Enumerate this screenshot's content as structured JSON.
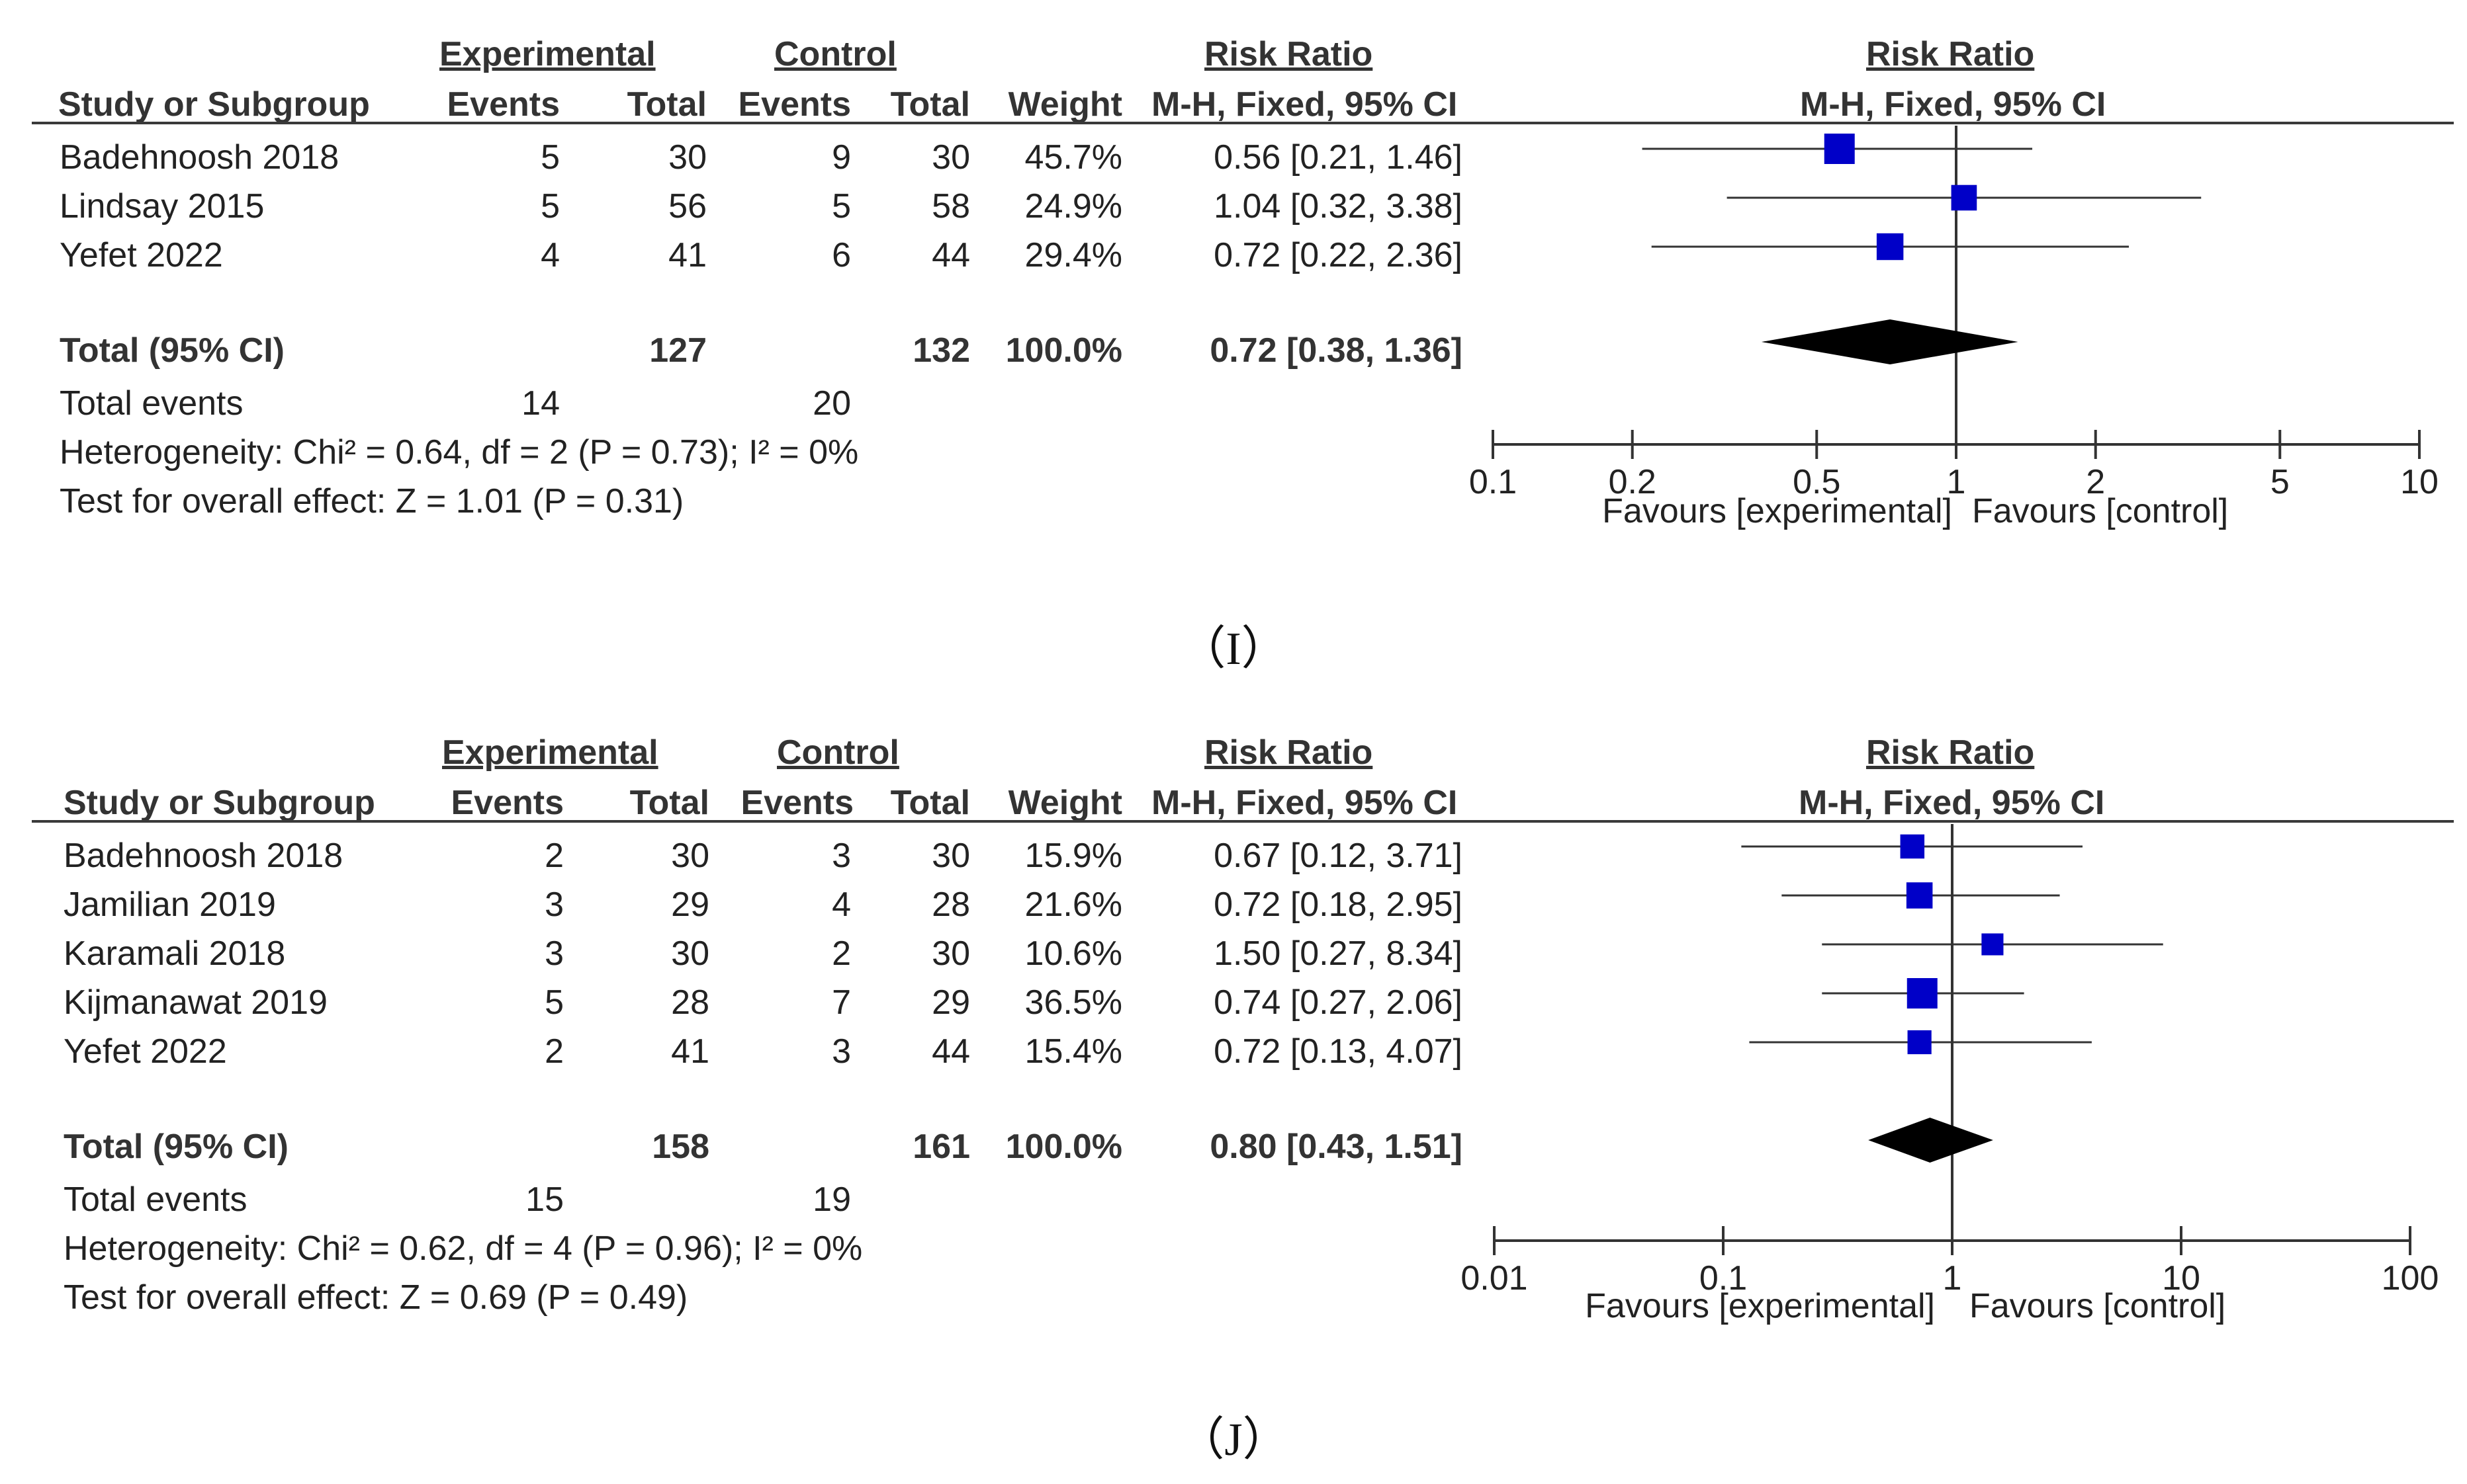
{
  "colors": {
    "marker": "#0000c8",
    "text": "#222222",
    "line": "#333333"
  },
  "panels": [
    {
      "panel_label": "（I）",
      "header": {
        "exp": "Experimental",
        "ctl": "Control",
        "rr": "Risk Ratio",
        "plot_rr": "Risk Ratio",
        "study": "Study or Subgroup",
        "events": "Events",
        "total": "Total",
        "events2": "Events",
        "total2": "Total",
        "weight": "Weight",
        "method": "M-H, Fixed, 95% CI",
        "plot_method": "M-H, Fixed, 95% CI"
      },
      "summary": {
        "total_label": "Total (95% CI)",
        "exp_total": "127",
        "ctl_total": "132",
        "weight": "100.0%",
        "ci_text": "0.72 [0.38, 1.36]",
        "events_label": "Total events",
        "exp_events": "14",
        "ctl_events": "20",
        "heterogeneity": "Heterogeneity: Chi² = 0.64, df = 2 (P = 0.73); I² = 0%",
        "overall": "Test for overall effect: Z = 1.01 (P = 0.31)"
      },
      "favours_left": "Favours [experimental]",
      "favours_right": "Favours [control]"
    },
    {
      "panel_label": "（J）",
      "header": {
        "exp": "Experimental",
        "ctl": "Control",
        "rr": "Risk Ratio",
        "plot_rr": "Risk Ratio",
        "study": "Study or Subgroup",
        "events": "Events",
        "total": "Total",
        "events2": "Events",
        "total2": "Total",
        "weight": "Weight",
        "method": "M-H, Fixed, 95% CI",
        "plot_method": "M-H, Fixed, 95% CI"
      },
      "summary": {
        "total_label": "Total (95% CI)",
        "exp_total": "158",
        "ctl_total": "161",
        "weight": "100.0%",
        "ci_text": "0.80 [0.43, 1.51]",
        "events_label": "Total events",
        "exp_events": "15",
        "ctl_events": "19",
        "heterogeneity": "Heterogeneity: Chi² = 0.62, df = 4 (P = 0.96); I² = 0%",
        "overall": "Test for overall effect: Z = 0.69 (P = 0.49)"
      },
      "favours_left": "Favours [experimental]",
      "favours_right": "Favours [control]"
    }
  ],
  "chart_data": [
    {
      "type": "forest",
      "title": "Risk Ratio",
      "xlabel": "M-H, Fixed, 95% CI",
      "scale": "log",
      "xlim": [
        0.1,
        10
      ],
      "ticks": [
        0.1,
        0.2,
        0.5,
        1,
        2,
        5,
        10
      ],
      "tick_labels": [
        "0.1",
        "0.2",
        "0.5",
        "1",
        "2",
        "5",
        "10"
      ],
      "studies": [
        {
          "name": "Badehnoosh 2018",
          "exp_events": 5,
          "exp_total": 30,
          "ctl_events": 9,
          "ctl_total": 30,
          "weight": "45.7%",
          "weight_pct": 45.7,
          "rr": 0.56,
          "lo": 0.21,
          "hi": 1.46,
          "ci_text": "0.56 [0.21, 1.46]"
        },
        {
          "name": "Lindsay 2015",
          "exp_events": 5,
          "exp_total": 56,
          "ctl_events": 5,
          "ctl_total": 58,
          "weight": "24.9%",
          "weight_pct": 24.9,
          "rr": 1.04,
          "lo": 0.32,
          "hi": 3.38,
          "ci_text": "1.04 [0.32, 3.38]"
        },
        {
          "name": "Yefet 2022",
          "exp_events": 4,
          "exp_total": 41,
          "ctl_events": 6,
          "ctl_total": 44,
          "weight": "29.4%",
          "weight_pct": 29.4,
          "rr": 0.72,
          "lo": 0.22,
          "hi": 2.36,
          "ci_text": "0.72 [0.22, 2.36]"
        }
      ],
      "pooled": {
        "rr": 0.72,
        "lo": 0.38,
        "hi": 1.36
      }
    },
    {
      "type": "forest",
      "title": "Risk Ratio",
      "xlabel": "M-H, Fixed, 95% CI",
      "scale": "log",
      "xlim": [
        0.01,
        100
      ],
      "ticks": [
        0.01,
        0.1,
        1,
        10,
        100
      ],
      "tick_labels": [
        "0.01",
        "0.1",
        "1",
        "10",
        "100"
      ],
      "studies": [
        {
          "name": "Badehnoosh 2018",
          "exp_events": 2,
          "exp_total": 30,
          "ctl_events": 3,
          "ctl_total": 30,
          "weight": "15.9%",
          "weight_pct": 15.9,
          "rr": 0.67,
          "lo": 0.12,
          "hi": 3.71,
          "ci_text": "0.67 [0.12, 3.71]"
        },
        {
          "name": "Jamilian 2019",
          "exp_events": 3,
          "exp_total": 29,
          "ctl_events": 4,
          "ctl_total": 28,
          "weight": "21.6%",
          "weight_pct": 21.6,
          "rr": 0.72,
          "lo": 0.18,
          "hi": 2.95,
          "ci_text": "0.72 [0.18, 2.95]"
        },
        {
          "name": "Karamali 2018",
          "exp_events": 3,
          "exp_total": 30,
          "ctl_events": 2,
          "ctl_total": 30,
          "weight": "10.6%",
          "weight_pct": 10.6,
          "rr": 1.5,
          "lo": 0.27,
          "hi": 8.34,
          "ci_text": "1.50 [0.27, 8.34]"
        },
        {
          "name": "Kijmanawat 2019",
          "exp_events": 5,
          "exp_total": 28,
          "ctl_events": 7,
          "ctl_total": 29,
          "weight": "36.5%",
          "weight_pct": 36.5,
          "rr": 0.74,
          "lo": 0.27,
          "hi": 2.06,
          "ci_text": "0.74 [0.27, 2.06]"
        },
        {
          "name": "Yefet 2022",
          "exp_events": 2,
          "exp_total": 41,
          "ctl_events": 3,
          "ctl_total": 44,
          "weight": "15.4%",
          "weight_pct": 15.4,
          "rr": 0.72,
          "lo": 0.13,
          "hi": 4.07,
          "ci_text": "0.72 [0.13, 4.07]"
        }
      ],
      "pooled": {
        "rr": 0.8,
        "lo": 0.43,
        "hi": 1.51
      }
    }
  ]
}
